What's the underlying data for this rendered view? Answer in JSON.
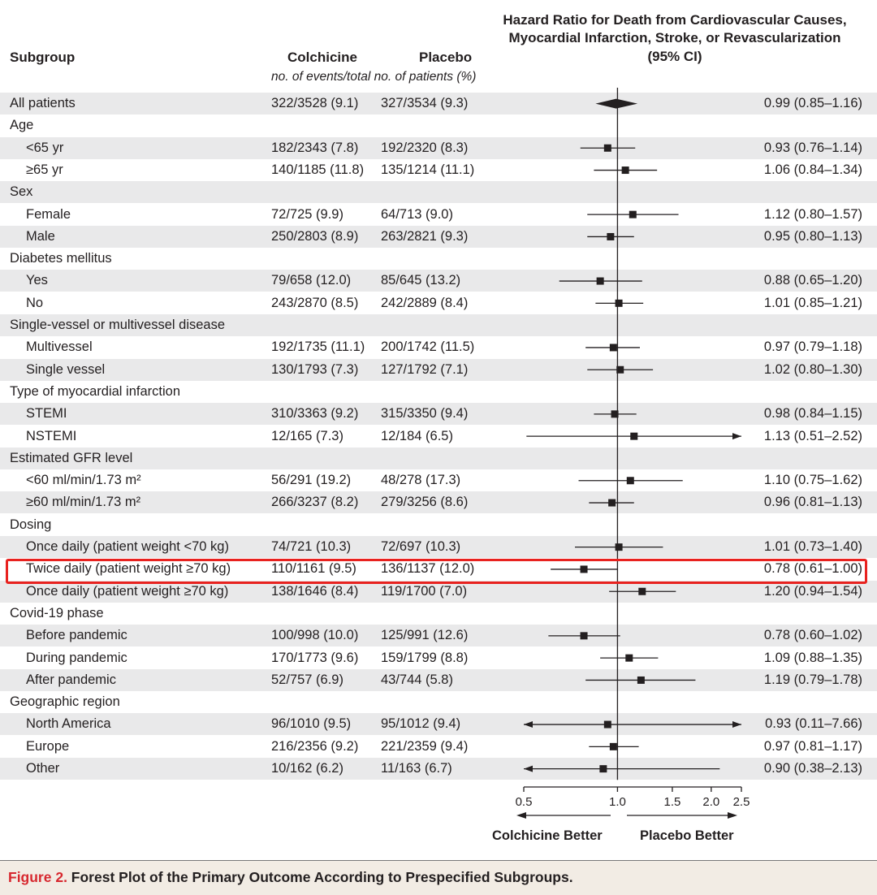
{
  "header": {
    "subgroup": "Subgroup",
    "colchicine": "Colchicine",
    "placebo": "Placebo",
    "subtitle": "no. of events/total no. of patients (%)",
    "hr_line1": "Hazard Ratio for Death from Cardiovascular Causes,",
    "hr_line2": "Myocardial Infarction, Stroke, or Revascularization",
    "hr_line3": "(95% CI)"
  },
  "rows": [
    {
      "label": "All patients",
      "indent": false,
      "colchicine": "322/3528 (9.1)",
      "placebo": "327/3534 (9.3)",
      "hr_text": "0.99 (0.85–1.16)"
    },
    {
      "label": "Age",
      "indent": false,
      "colchicine": "",
      "placebo": "",
      "hr_text": ""
    },
    {
      "label": "<65 yr",
      "indent": true,
      "colchicine": "182/2343 (7.8)",
      "placebo": "192/2320 (8.3)",
      "hr_text": "0.93 (0.76–1.14)"
    },
    {
      "label": "≥65 yr",
      "indent": true,
      "colchicine": "140/1185 (11.8)",
      "placebo": "135/1214 (11.1)",
      "hr_text": "1.06 (0.84–1.34)"
    },
    {
      "label": "Sex",
      "indent": false,
      "colchicine": "",
      "placebo": "",
      "hr_text": ""
    },
    {
      "label": "Female",
      "indent": true,
      "colchicine": "72/725 (9.9)",
      "placebo": "64/713 (9.0)",
      "hr_text": "1.12 (0.80–1.57)"
    },
    {
      "label": "Male",
      "indent": true,
      "colchicine": "250/2803 (8.9)",
      "placebo": "263/2821 (9.3)",
      "hr_text": "0.95 (0.80–1.13)"
    },
    {
      "label": "Diabetes mellitus",
      "indent": false,
      "colchicine": "",
      "placebo": "",
      "hr_text": ""
    },
    {
      "label": "Yes",
      "indent": true,
      "colchicine": "79/658 (12.0)",
      "placebo": "85/645 (13.2)",
      "hr_text": "0.88 (0.65–1.20)"
    },
    {
      "label": "No",
      "indent": true,
      "colchicine": "243/2870 (8.5)",
      "placebo": "242/2889 (8.4)",
      "hr_text": "1.01 (0.85–1.21)"
    },
    {
      "label": "Single-vessel or multivessel disease",
      "indent": false,
      "colchicine": "",
      "placebo": "",
      "hr_text": ""
    },
    {
      "label": "Multivessel",
      "indent": true,
      "colchicine": "192/1735 (11.1)",
      "placebo": "200/1742 (11.5)",
      "hr_text": "0.97 (0.79–1.18)"
    },
    {
      "label": "Single vessel",
      "indent": true,
      "colchicine": "130/1793 (7.3)",
      "placebo": "127/1792 (7.1)",
      "hr_text": "1.02 (0.80–1.30)"
    },
    {
      "label": "Type of myocardial infarction",
      "indent": false,
      "colchicine": "",
      "placebo": "",
      "hr_text": ""
    },
    {
      "label": "STEMI",
      "indent": true,
      "colchicine": "310/3363 (9.2)",
      "placebo": "315/3350 (9.4)",
      "hr_text": "0.98 (0.84–1.15)"
    },
    {
      "label": "NSTEMI",
      "indent": true,
      "colchicine": "12/165 (7.3)",
      "placebo": "12/184 (6.5)",
      "hr_text": "1.13 (0.51–2.52)"
    },
    {
      "label": "Estimated GFR level",
      "indent": false,
      "colchicine": "",
      "placebo": "",
      "hr_text": ""
    },
    {
      "label": "<60 ml/min/1.73 m²",
      "indent": true,
      "colchicine": "56/291 (19.2)",
      "placebo": "48/278 (17.3)",
      "hr_text": "1.10 (0.75–1.62)"
    },
    {
      "label": "≥60 ml/min/1.73 m²",
      "indent": true,
      "colchicine": "266/3237 (8.2)",
      "placebo": "279/3256 (8.6)",
      "hr_text": "0.96 (0.81–1.13)"
    },
    {
      "label": "Dosing",
      "indent": false,
      "colchicine": "",
      "placebo": "",
      "hr_text": ""
    },
    {
      "label": "Once daily (patient weight <70 kg)",
      "indent": true,
      "colchicine": "74/721 (10.3)",
      "placebo": "72/697 (10.3)",
      "hr_text": "1.01 (0.73–1.40)"
    },
    {
      "label": "Twice daily (patient weight ≥70 kg)",
      "indent": true,
      "colchicine": "110/1161 (9.5)",
      "placebo": "136/1137 (12.0)",
      "hr_text": "0.78 (0.61–1.00)"
    },
    {
      "label": "Once daily (patient weight ≥70 kg)",
      "indent": true,
      "colchicine": "138/1646 (8.4)",
      "placebo": "119/1700 (7.0)",
      "hr_text": "1.20 (0.94–1.54)"
    },
    {
      "label": "Covid-19 phase",
      "indent": false,
      "colchicine": "",
      "placebo": "",
      "hr_text": ""
    },
    {
      "label": "Before pandemic",
      "indent": true,
      "colchicine": "100/998 (10.0)",
      "placebo": "125/991 (12.6)",
      "hr_text": "0.78 (0.60–1.02)"
    },
    {
      "label": "During pandemic",
      "indent": true,
      "colchicine": "170/1773 (9.6)",
      "placebo": "159/1799 (8.8)",
      "hr_text": "1.09 (0.88–1.35)"
    },
    {
      "label": "After pandemic",
      "indent": true,
      "colchicine": "52/757 (6.9)",
      "placebo": "43/744 (5.8)",
      "hr_text": "1.19 (0.79–1.78)"
    },
    {
      "label": "Geographic region",
      "indent": false,
      "colchicine": "",
      "placebo": "",
      "hr_text": ""
    },
    {
      "label": "North America",
      "indent": true,
      "colchicine": "96/1010 (9.5)",
      "placebo": "95/1012 (9.4)",
      "hr_text": "0.93 (0.11–7.66)"
    },
    {
      "label": "Europe",
      "indent": true,
      "colchicine": "216/2356 (9.2)",
      "placebo": "221/2359 (9.4)",
      "hr_text": "0.97 (0.81–1.17)"
    },
    {
      "label": "Other",
      "indent": true,
      "colchicine": "10/162 (6.2)",
      "placebo": "11/163 (6.7)",
      "hr_text": "0.90 (0.38–2.13)"
    }
  ],
  "chart_data": {
    "type": "forest",
    "title": "Hazard Ratio for Death from Cardiovascular Causes, Myocardial Infarction, Stroke, or Revascularization (95% CI)",
    "x_scale": "log",
    "xlim": [
      0.5,
      2.5
    ],
    "reference_line": 1.0,
    "x_ticks": [
      0.5,
      1.0,
      1.5,
      2.0,
      2.5
    ],
    "x_tick_labels": [
      "0.5",
      "1.0",
      "1.5",
      "2.0",
      "2.5"
    ],
    "direction_left": "Colchicine Better",
    "direction_right": "Placebo Better",
    "points": [
      {
        "label": "All patients",
        "hr": 0.99,
        "lo": 0.85,
        "hi": 1.16,
        "summary": true
      },
      {
        "label": "<65 yr",
        "hr": 0.93,
        "lo": 0.76,
        "hi": 1.14
      },
      {
        "label": "≥65 yr",
        "hr": 1.06,
        "lo": 0.84,
        "hi": 1.34
      },
      {
        "label": "Female",
        "hr": 1.12,
        "lo": 0.8,
        "hi": 1.57
      },
      {
        "label": "Male",
        "hr": 0.95,
        "lo": 0.8,
        "hi": 1.13
      },
      {
        "label": "Yes",
        "hr": 0.88,
        "lo": 0.65,
        "hi": 1.2
      },
      {
        "label": "No",
        "hr": 1.01,
        "lo": 0.85,
        "hi": 1.21
      },
      {
        "label": "Multivessel",
        "hr": 0.97,
        "lo": 0.79,
        "hi": 1.18
      },
      {
        "label": "Single vessel",
        "hr": 1.02,
        "lo": 0.8,
        "hi": 1.3
      },
      {
        "label": "STEMI",
        "hr": 0.98,
        "lo": 0.84,
        "hi": 1.15
      },
      {
        "label": "NSTEMI",
        "hr": 1.13,
        "lo": 0.51,
        "hi": 2.52
      },
      {
        "label": "<60 ml/min/1.73 m²",
        "hr": 1.1,
        "lo": 0.75,
        "hi": 1.62
      },
      {
        "label": "≥60 ml/min/1.73 m²",
        "hr": 0.96,
        "lo": 0.81,
        "hi": 1.13
      },
      {
        "label": "Once daily (patient weight <70 kg)",
        "hr": 1.01,
        "lo": 0.73,
        "hi": 1.4
      },
      {
        "label": "Twice daily (patient weight ≥70 kg)",
        "hr": 0.78,
        "lo": 0.61,
        "hi": 1.0
      },
      {
        "label": "Once daily (patient weight ≥70 kg)",
        "hr": 1.2,
        "lo": 0.94,
        "hi": 1.54
      },
      {
        "label": "Before pandemic",
        "hr": 0.78,
        "lo": 0.6,
        "hi": 1.02
      },
      {
        "label": "During pandemic",
        "hr": 1.09,
        "lo": 0.88,
        "hi": 1.35
      },
      {
        "label": "After pandemic",
        "hr": 1.19,
        "lo": 0.79,
        "hi": 1.78
      },
      {
        "label": "North America",
        "hr": 0.93,
        "lo": 0.11,
        "hi": 7.66
      },
      {
        "label": "Europe",
        "hr": 0.97,
        "lo": 0.81,
        "hi": 1.17
      },
      {
        "label": "Other",
        "hr": 0.9,
        "lo": 0.38,
        "hi": 2.13
      }
    ]
  },
  "highlight_color": "#e8221f",
  "caption": {
    "label": "Figure 2.",
    "text": " Forest Plot of the Primary Outcome According to Prespecified Subgroups."
  }
}
